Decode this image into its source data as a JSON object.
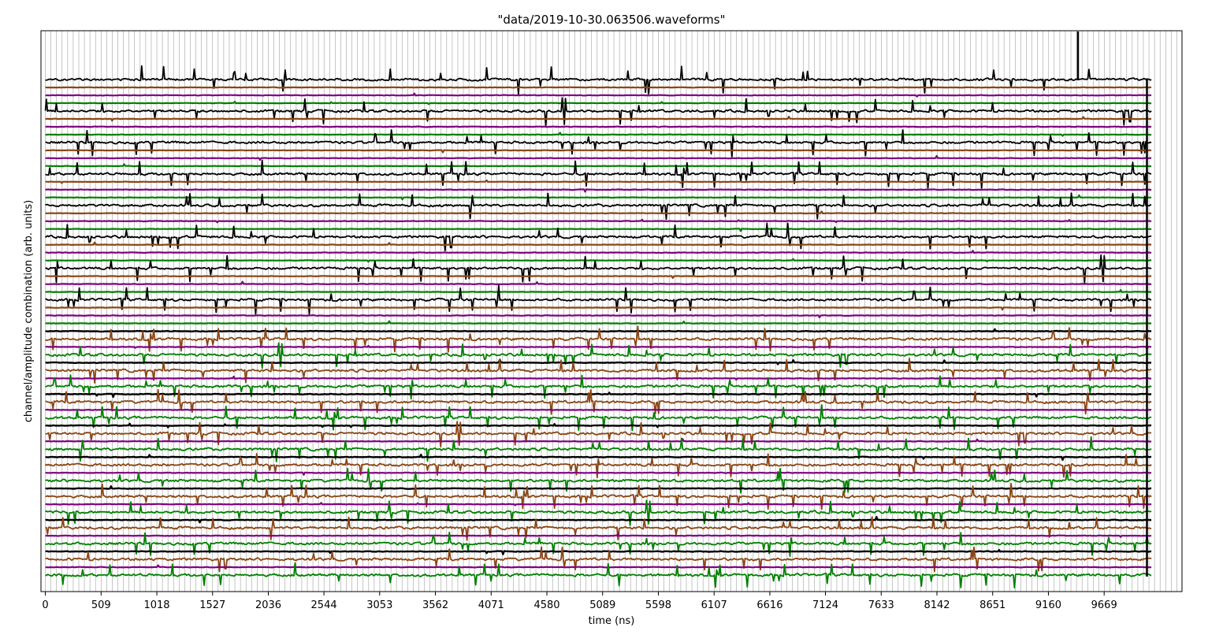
{
  "chart_data": {
    "type": "line",
    "title": "\"data/2019-10-30.063506.waveforms\"",
    "xlabel": "time (ns)",
    "ylabel": "channel/amplitude combination (arb. units)",
    "xlim": [
      -40,
      10380
    ],
    "x_ticks": [
      0,
      509,
      1018,
      1527,
      2036,
      2544,
      3053,
      3562,
      4071,
      4580,
      5089,
      5598,
      6107,
      6616,
      7124,
      7633,
      8142,
      8651,
      9160,
      9669
    ],
    "x_tick_labels": [
      "0",
      "509",
      "1018",
      "1527",
      "2036",
      "2544",
      "3053",
      "3562",
      "4071",
      "4580",
      "5089",
      "5598",
      "6107",
      "6616",
      "7124",
      "7633",
      "8142",
      "8651",
      "9160",
      "9669"
    ],
    "minor_grid_spacing_ns": 50.9,
    "grid": true,
    "trace_end_ns": 10100,
    "channel_cycle": [
      "black",
      "brown",
      "purple",
      "green"
    ],
    "colors": {
      "black": "#000000",
      "brown": "#8b4513",
      "purple": "#800080",
      "green": "#008000",
      "grid": "#a0a0a0",
      "frame": "#000000"
    },
    "series_description": "64 stacked waveform traces (channel/amplitude combinations), colors cycling black, brown, purple, green; black traces noisy in upper half, brown and green noisy in lower half",
    "n_traces": 64
  }
}
